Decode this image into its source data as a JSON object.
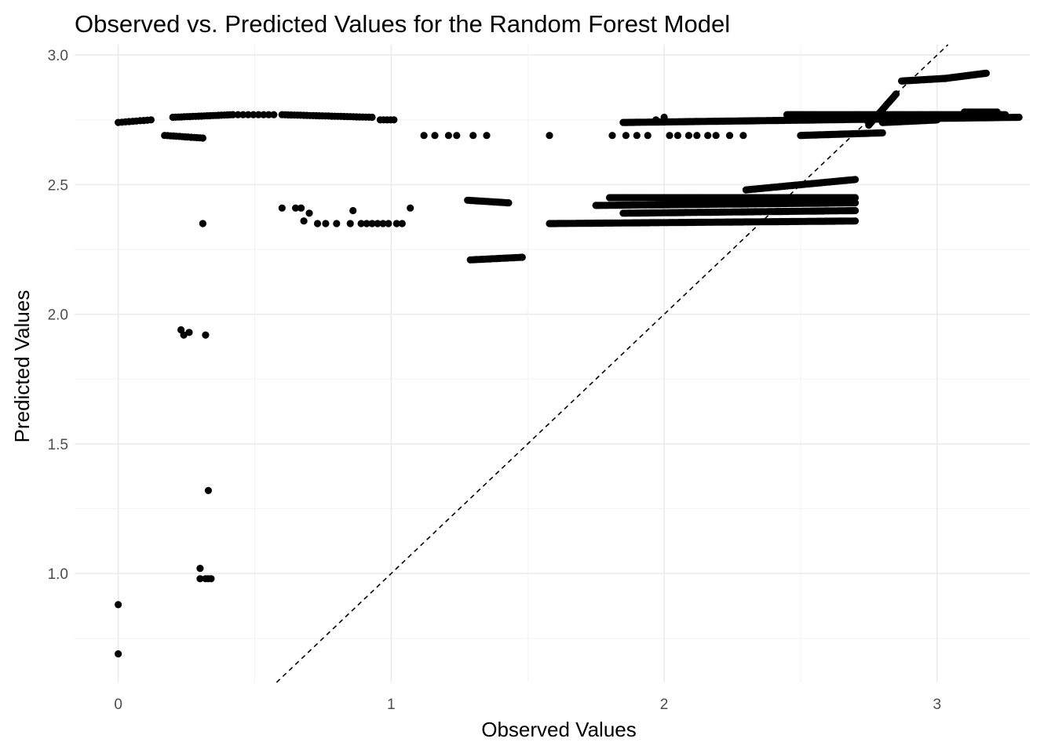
{
  "chart_data": {
    "type": "scatter",
    "title": "Observed vs. Predicted Values for the Random Forest Model",
    "xlabel": "Observed Values",
    "ylabel": "Predicted Values",
    "xlim": [
      -0.16,
      3.34
    ],
    "ylim": [
      0.58,
      3.04
    ],
    "x_ticks": [
      0,
      1,
      2,
      3
    ],
    "x_tick_labels": [
      "0",
      "1",
      "2",
      "3"
    ],
    "y_ticks": [
      1.0,
      1.5,
      2.0,
      2.5,
      3.0
    ],
    "y_tick_labels": [
      "1.0",
      "1.5",
      "2.0",
      "2.5",
      "3.0"
    ],
    "grid": true,
    "reference_line": {
      "style": "dashed",
      "slope": 1,
      "intercept": 0
    },
    "point_color": "#000000",
    "points_isolated": [
      [
        0.0,
        0.88
      ],
      [
        0.0,
        0.69
      ],
      [
        0.3,
        1.02
      ],
      [
        0.3,
        0.98
      ],
      [
        0.32,
        0.98
      ],
      [
        0.33,
        0.98
      ],
      [
        0.34,
        0.98
      ],
      [
        0.33,
        1.32
      ],
      [
        0.31,
        2.35
      ],
      [
        0.23,
        1.94
      ],
      [
        0.24,
        1.92
      ],
      [
        0.26,
        1.93
      ],
      [
        0.32,
        1.92
      ],
      [
        0.6,
        2.41
      ],
      [
        0.65,
        2.41
      ],
      [
        0.67,
        2.41
      ],
      [
        0.68,
        2.36
      ],
      [
        0.7,
        2.39
      ],
      [
        0.73,
        2.35
      ],
      [
        0.76,
        2.35
      ],
      [
        0.8,
        2.35
      ],
      [
        0.85,
        2.35
      ],
      [
        0.86,
        2.4
      ],
      [
        0.89,
        2.35
      ],
      [
        0.91,
        2.35
      ],
      [
        0.93,
        2.35
      ],
      [
        0.95,
        2.35
      ],
      [
        0.97,
        2.35
      ],
      [
        0.99,
        2.35
      ],
      [
        1.02,
        2.35
      ],
      [
        1.04,
        2.35
      ],
      [
        1.07,
        2.41
      ],
      [
        1.12,
        2.69
      ],
      [
        1.16,
        2.69
      ],
      [
        1.21,
        2.69
      ],
      [
        1.24,
        2.69
      ],
      [
        1.3,
        2.69
      ],
      [
        1.35,
        2.69
      ],
      [
        1.58,
        2.69
      ],
      [
        1.81,
        2.69
      ],
      [
        1.86,
        2.69
      ],
      [
        1.9,
        2.69
      ],
      [
        1.94,
        2.69
      ],
      [
        2.02,
        2.69
      ],
      [
        2.05,
        2.69
      ],
      [
        2.09,
        2.69
      ],
      [
        2.12,
        2.69
      ],
      [
        2.16,
        2.69
      ],
      [
        2.19,
        2.69
      ],
      [
        2.24,
        2.69
      ],
      [
        2.29,
        2.69
      ],
      [
        2.0,
        2.76
      ],
      [
        1.97,
        2.75
      ]
    ],
    "point_runs": [
      {
        "x": [
          0.0,
          0.12
        ],
        "y": [
          2.74,
          2.75
        ],
        "n": 10
      },
      {
        "x": [
          0.17,
          0.31
        ],
        "y": [
          2.69,
          2.68
        ],
        "n": 14
      },
      {
        "x": [
          0.2,
          0.42
        ],
        "y": [
          2.76,
          2.77
        ],
        "n": 22
      },
      {
        "x": [
          0.42,
          0.57
        ],
        "y": [
          2.77,
          2.77
        ],
        "n": 9
      },
      {
        "x": [
          0.6,
          0.93
        ],
        "y": [
          2.77,
          2.76
        ],
        "n": 30
      },
      {
        "x": [
          0.96,
          1.01
        ],
        "y": [
          2.75,
          2.75
        ],
        "n": 5
      },
      {
        "x": [
          1.28,
          1.43
        ],
        "y": [
          2.44,
          2.43
        ],
        "n": 25
      },
      {
        "x": [
          1.29,
          1.48
        ],
        "y": [
          2.21,
          2.22
        ],
        "n": 25
      },
      {
        "x": [
          1.58,
          2.7
        ],
        "y": [
          2.35,
          2.36
        ],
        "n": 180
      },
      {
        "x": [
          1.75,
          2.7
        ],
        "y": [
          2.42,
          2.43
        ],
        "n": 160
      },
      {
        "x": [
          1.8,
          2.7
        ],
        "y": [
          2.45,
          2.45
        ],
        "n": 140
      },
      {
        "x": [
          1.85,
          2.7
        ],
        "y": [
          2.39,
          2.4
        ],
        "n": 140
      },
      {
        "x": [
          2.3,
          2.7
        ],
        "y": [
          2.48,
          2.52
        ],
        "n": 60
      },
      {
        "x": [
          1.85,
          3.3
        ],
        "y": [
          2.74,
          2.76
        ],
        "n": 260
      },
      {
        "x": [
          2.45,
          3.25
        ],
        "y": [
          2.77,
          2.77
        ],
        "n": 160
      },
      {
        "x": [
          2.5,
          2.8
        ],
        "y": [
          2.69,
          2.7
        ],
        "n": 60
      },
      {
        "x": [
          2.75,
          2.85
        ],
        "y": [
          2.73,
          2.85
        ],
        "n": 20
      },
      {
        "x": [
          2.8,
          3.0
        ],
        "y": [
          2.74,
          2.75
        ],
        "n": 60
      },
      {
        "x": [
          2.87,
          3.03
        ],
        "y": [
          2.9,
          2.91
        ],
        "n": 40
      },
      {
        "x": [
          3.03,
          3.18
        ],
        "y": [
          2.91,
          2.93
        ],
        "n": 40
      },
      {
        "x": [
          3.1,
          3.22
        ],
        "y": [
          2.78,
          2.78
        ],
        "n": 20
      }
    ]
  }
}
